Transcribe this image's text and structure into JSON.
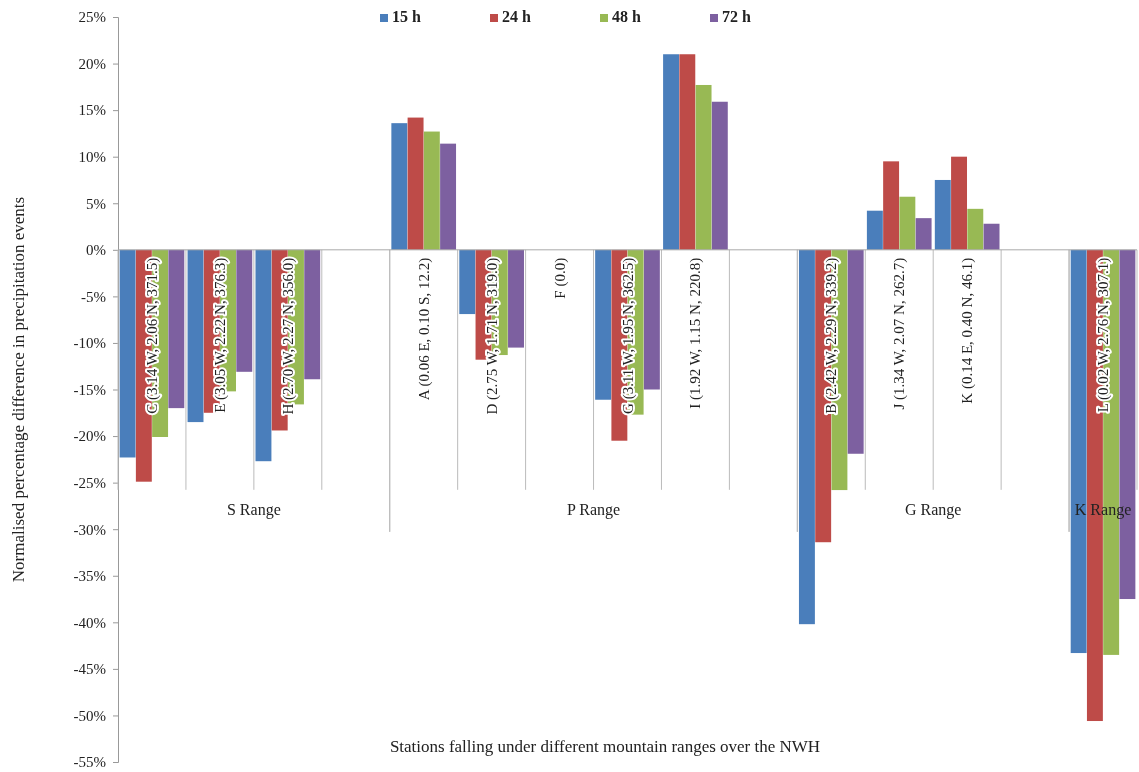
{
  "chart_data": {
    "type": "bar",
    "xlabel": "Stations falling under different mountain ranges over the NWH",
    "ylabel": "Normalised percentage difference in precipitation events",
    "categories": [
      "C (3.14 W, 2.06 N, 371.5)",
      "E (3.05 W, 2.22 N, 376.3)",
      "H (2.70 W, 2.27 N, 356.0)",
      null,
      "A (0.06 E, 0.10 S, 12.2)",
      "D (2.75 W, 1.71 N, 319.0)",
      "F (0.0)",
      "G (3.11 W, 1.95 N, 362.5)",
      "I (1.92 W, 1.15 N, 220.8)",
      null,
      "B (2.42 W, 2.29 N, 339.2)",
      "J (1.34 W, 2.07 N, 262.7)",
      "K (0.14 E, 0.40 N, 46.1)",
      null,
      "L (0.02 W, 2.76 N, 307.1)"
    ],
    "series": [
      {
        "name": "15 h",
        "color": "#4a7ebb",
        "values": [
          -22.3,
          -18.5,
          -22.7,
          null,
          13.6,
          -6.9,
          0,
          -16.1,
          21.0,
          null,
          -40.2,
          4.2,
          7.5,
          null,
          -43.3
        ]
      },
      {
        "name": "24 h",
        "color": "#be4b48",
        "values": [
          -24.9,
          -17.5,
          -19.4,
          null,
          14.2,
          -11.8,
          0,
          -20.5,
          21.0,
          null,
          -31.4,
          9.5,
          10.0,
          null,
          -50.6
        ]
      },
      {
        "name": "48 h",
        "color": "#98b954",
        "values": [
          -20.1,
          -15.2,
          -16.6,
          null,
          12.7,
          -11.3,
          0,
          -17.7,
          17.7,
          null,
          -25.8,
          5.7,
          4.4,
          null,
          -43.5
        ]
      },
      {
        "name": "72 h",
        "color": "#7d60a0",
        "values": [
          -17.0,
          -13.1,
          -13.9,
          null,
          11.4,
          -10.5,
          0,
          -15.0,
          15.9,
          null,
          -21.9,
          3.4,
          2.8,
          null,
          -37.5
        ]
      }
    ],
    "ylim": [
      -55,
      25
    ],
    "yticks": [
      {
        "value": -55,
        "label": "-55%"
      },
      {
        "value": -50,
        "label": "-50%"
      },
      {
        "value": -45,
        "label": "-45%"
      },
      {
        "value": -40,
        "label": "-40%"
      },
      {
        "value": -35,
        "label": "-35%"
      },
      {
        "value": -30,
        "label": "-30%"
      },
      {
        "value": -25,
        "label": "-25%"
      },
      {
        "value": -20,
        "label": "-20%"
      },
      {
        "value": -15,
        "label": "-15%"
      },
      {
        "value": -10,
        "label": "-10%"
      },
      {
        "value": -5,
        "label": "-5%"
      },
      {
        "value": 0,
        "label": "0%"
      },
      {
        "value": 5,
        "label": "5%"
      },
      {
        "value": 10,
        "label": "10%"
      },
      {
        "value": 15,
        "label": "15%"
      },
      {
        "value": 20,
        "label": "20%"
      },
      {
        "value": 25,
        "label": "25%"
      }
    ],
    "annotations": [
      {
        "text": "S Range"
      },
      {
        "text": "P Range"
      },
      {
        "text": "G Range"
      },
      {
        "text": "K Range"
      }
    ],
    "legend": "top",
    "grid": false
  }
}
